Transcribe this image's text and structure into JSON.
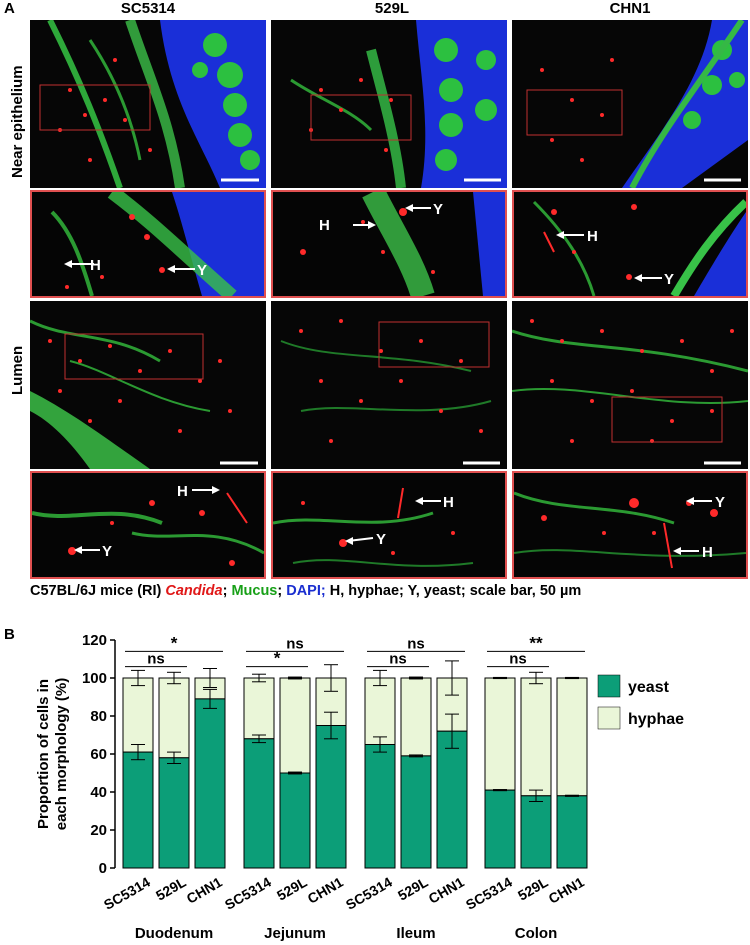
{
  "panel_a": {
    "letter": "A",
    "columns": [
      "SC5314",
      "529L",
      "CHN1"
    ],
    "rows": [
      "Near epithelium",
      "Lumen"
    ],
    "zoom_labels": {
      "near": [
        [
          "H",
          "Y"
        ],
        [
          "H",
          "Y"
        ],
        [
          "H",
          "Y"
        ]
      ],
      "lumen": [
        [
          "H",
          "Y"
        ],
        [
          "H",
          "Y"
        ],
        [
          "Y",
          "H"
        ]
      ]
    },
    "caption": {
      "prefix": "C57BL/6J mice (RI) ",
      "candida": "Candida",
      "sep1": "; ",
      "mucus": "Mucus",
      "sep2": "; ",
      "dapi": "DAPI;",
      "suffix": " H, hyphae; Y, yeast; scale bar, 50 µm"
    }
  },
  "panel_b": {
    "letter": "B",
    "colors": {
      "yeast": "#0c9e78",
      "hyphae": "#eaf6d8"
    },
    "chart_data": {
      "type": "bar",
      "stacked": true,
      "ylabel": "Proportion of cells in each morphology (%)",
      "ylim": [
        0,
        120
      ],
      "yticks": [
        0,
        20,
        40,
        60,
        80,
        100,
        120
      ],
      "groups": [
        "Duodenum",
        "Jejunum",
        "Ileum",
        "Colon"
      ],
      "strains": [
        "SC5314",
        "529L",
        "CHN1"
      ],
      "series": [
        {
          "name": "yeast",
          "values": [
            [
              61,
              58,
              89
            ],
            [
              68,
              50,
              75
            ],
            [
              65,
              59,
              72
            ],
            [
              41,
              38,
              38
            ]
          ]
        },
        {
          "name": "hyphae",
          "values": [
            [
              39,
              42,
              11
            ],
            [
              32,
              50,
              25
            ],
            [
              35,
              41,
              28
            ],
            [
              59,
              62,
              62
            ]
          ]
        }
      ],
      "significance": [
        {
          "group": "Duodenum",
          "pairs": [
            [
              "SC5314",
              "529L",
              "ns"
            ],
            [
              "SC5314",
              "CHN1",
              "*"
            ]
          ]
        },
        {
          "group": "Jejunum",
          "pairs": [
            [
              "SC5314",
              "529L",
              "*"
            ],
            [
              "SC5314",
              "CHN1",
              "ns"
            ]
          ]
        },
        {
          "group": "Ileum",
          "pairs": [
            [
              "SC5314",
              "529L",
              "ns"
            ],
            [
              "SC5314",
              "CHN1",
              "ns"
            ]
          ]
        },
        {
          "group": "Colon",
          "pairs": [
            [
              "SC5314",
              "529L",
              "ns"
            ],
            [
              "SC5314",
              "CHN1",
              "**"
            ]
          ]
        }
      ]
    }
  }
}
